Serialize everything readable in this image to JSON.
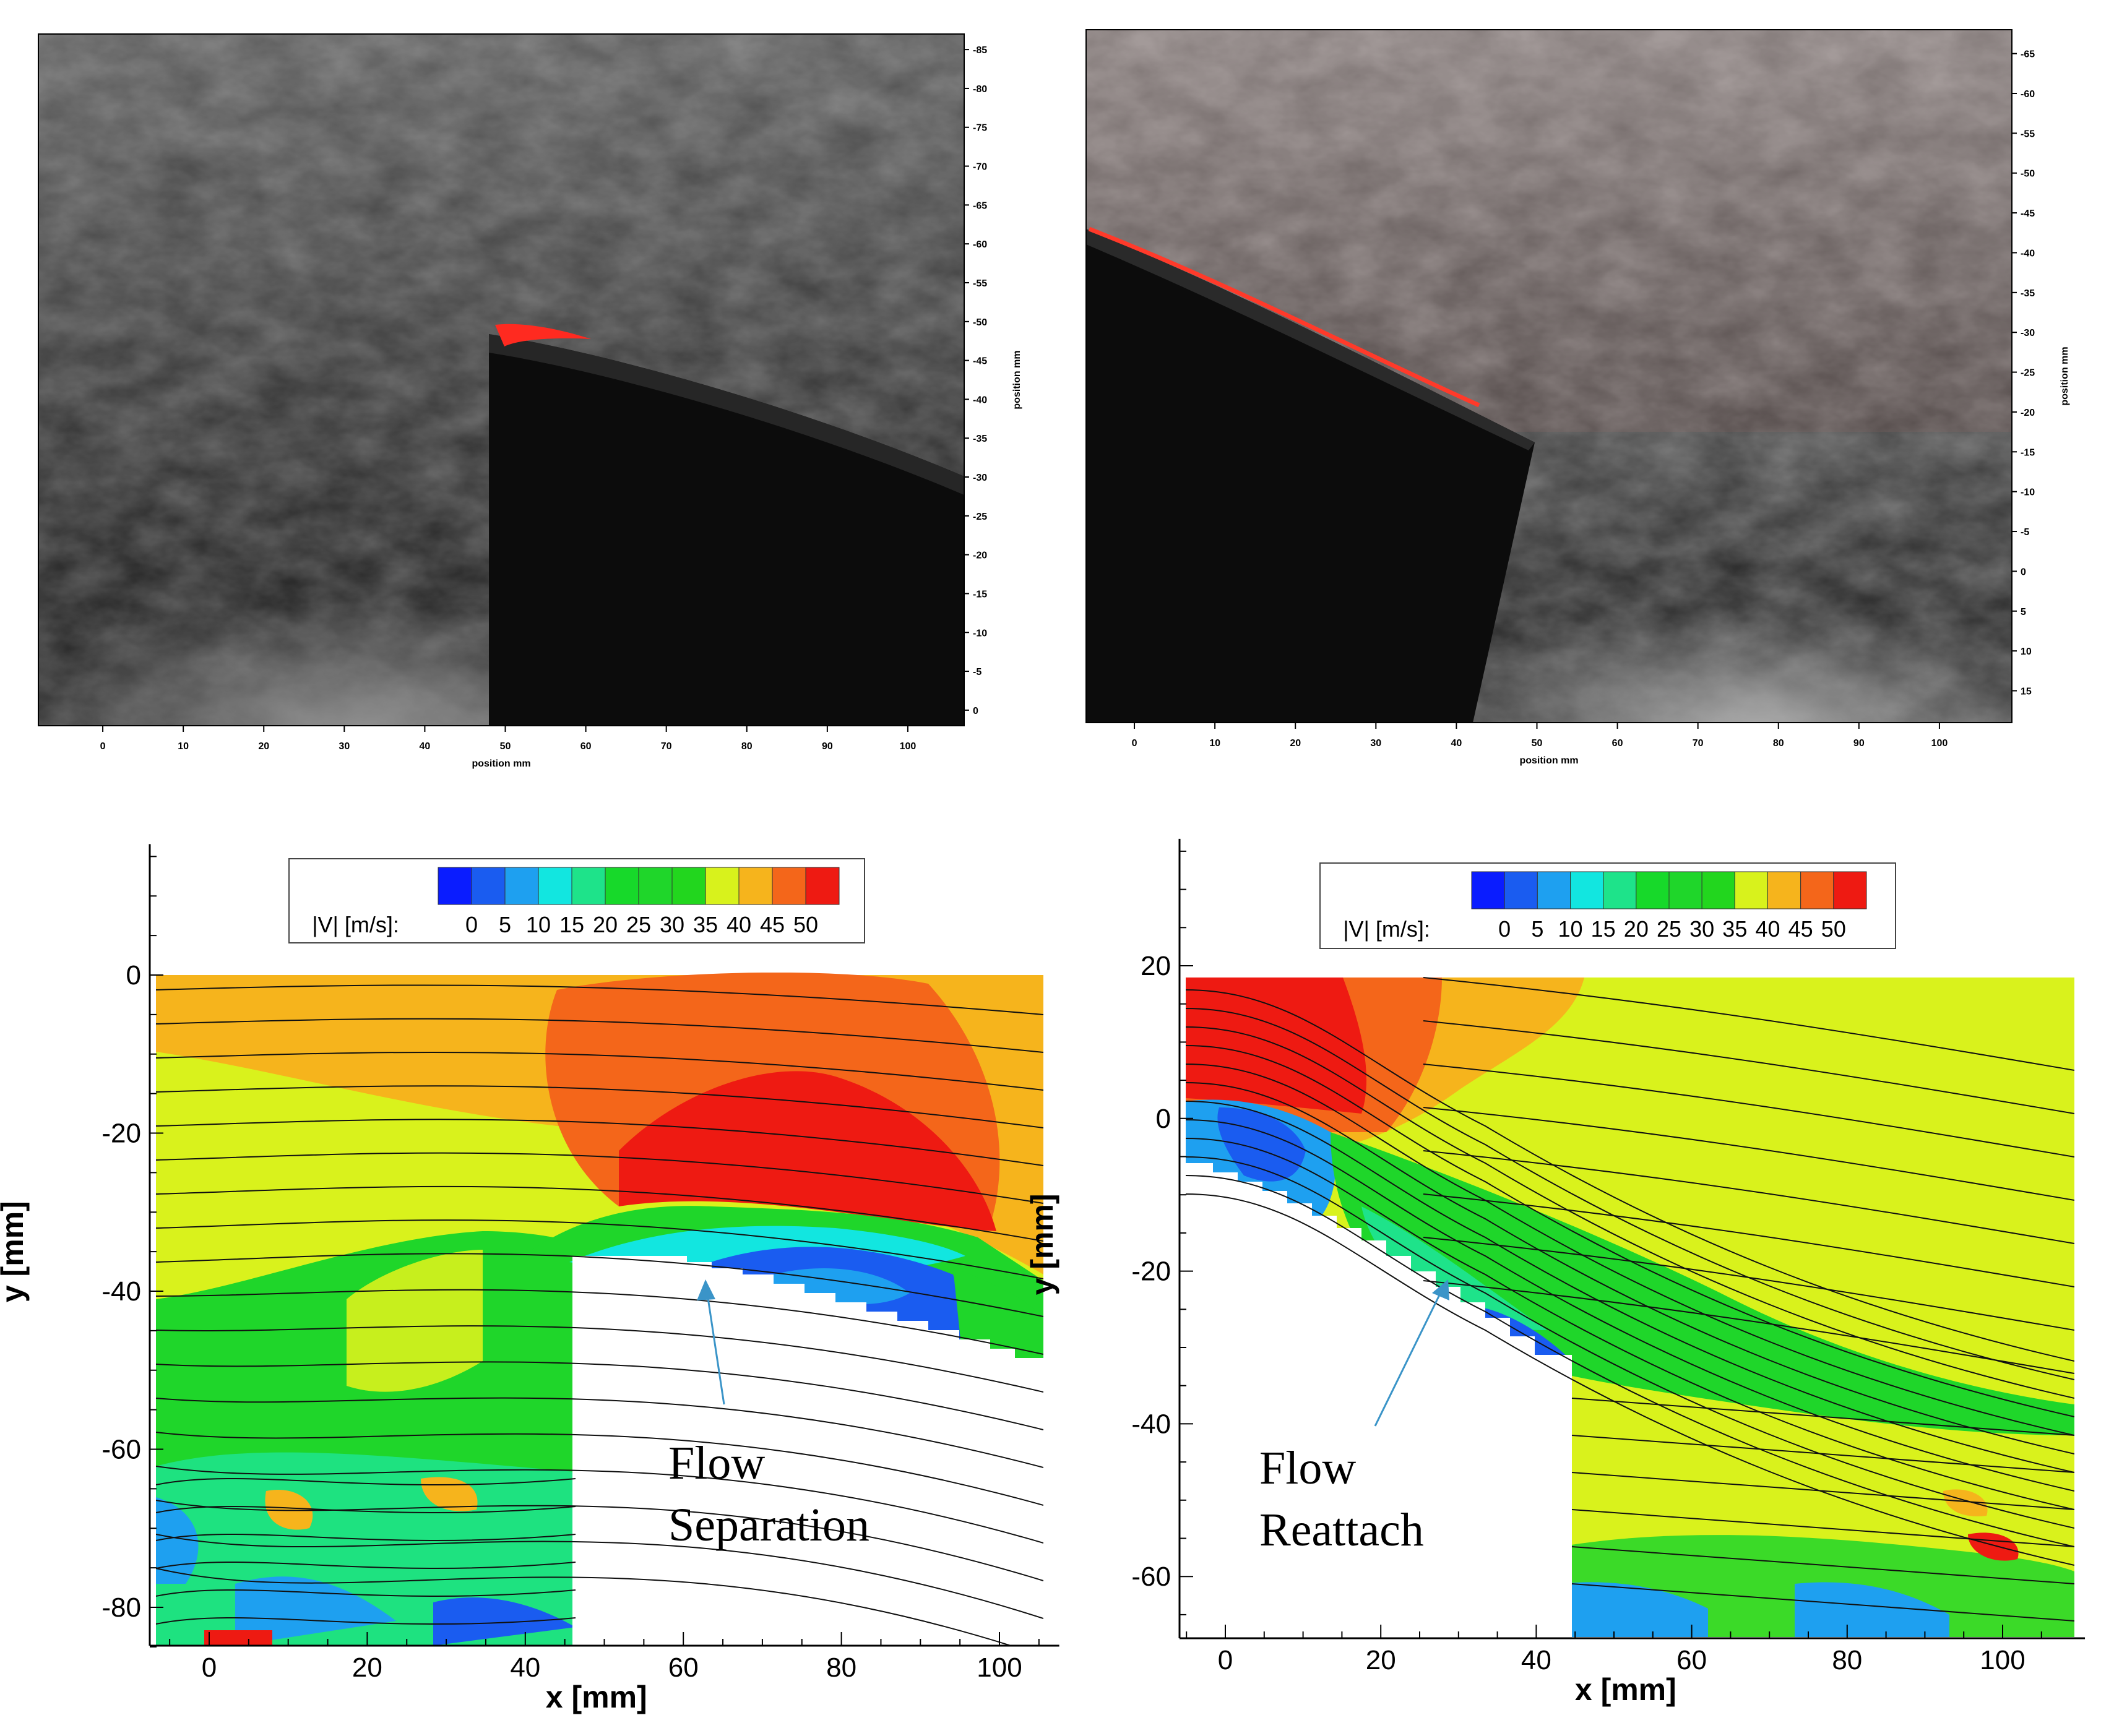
{
  "panels": {
    "top_left": {
      "x_ticks": [
        "0",
        "10",
        "20",
        "30",
        "40",
        "50",
        "60",
        "70",
        "80",
        "90",
        "100"
      ],
      "x_label": "position mm",
      "y_ticks": [
        "0",
        "-5",
        "-10",
        "-15",
        "-20",
        "-25",
        "-30",
        "-35",
        "-40",
        "-45",
        "-50",
        "-55",
        "-60",
        "-65",
        "-70",
        "-75",
        "-80",
        "-85"
      ],
      "y_label": "position mm"
    },
    "top_right": {
      "x_ticks": [
        "0",
        "10",
        "20",
        "30",
        "40",
        "50",
        "60",
        "70",
        "80",
        "90",
        "100"
      ],
      "x_label": "position mm",
      "y_ticks": [
        "15",
        "10",
        "5",
        "0",
        "-5",
        "-10",
        "-15",
        "-20",
        "-25",
        "-30",
        "-35",
        "-40",
        "-45",
        "-50",
        "-55",
        "-60",
        "-65"
      ],
      "y_label": "position mm"
    }
  },
  "colorbar": {
    "label": "|V| [m/s]:",
    "ticks": [
      "0",
      "5",
      "10",
      "15",
      "20",
      "25",
      "30",
      "35",
      "40",
      "45",
      "50"
    ],
    "colors": [
      "#0a1cff",
      "#1a5cf0",
      "#1ea0f0",
      "#12e6e0",
      "#1ee38a",
      "#17d92a",
      "#1fd62a",
      "#22d61e",
      "#d8f21c",
      "#f6b41c",
      "#f4661a",
      "#ee1a12"
    ]
  },
  "chart_data": [
    {
      "type": "heatmap",
      "xlabel": "x [mm]",
      "ylabel": "y [mm]",
      "xlim": [
        -8,
        106
      ],
      "ylim": [
        -85,
        15
      ],
      "x_ticks": [
        0,
        20,
        40,
        60,
        80,
        100
      ],
      "y_ticks": [
        0,
        -20,
        -40,
        -60,
        -80
      ],
      "annotation": [
        "Flow",
        "Separation"
      ],
      "colorbar_label": "|V| [m/s]:",
      "colorbar_ticks": [
        0,
        5,
        10,
        15,
        20,
        25,
        30,
        35,
        40,
        45,
        50
      ]
    },
    {
      "type": "heatmap",
      "xlabel": "x [mm]",
      "ylabel": "y [mm]",
      "xlim": [
        -6,
        109
      ],
      "ylim": [
        -68,
        35
      ],
      "x_ticks": [
        0,
        20,
        40,
        60,
        80,
        100
      ],
      "y_ticks": [
        20,
        0,
        -20,
        -40,
        -60
      ],
      "annotation": [
        "Flow",
        "Reattach"
      ],
      "colorbar_label": "|V| [m/s]:",
      "colorbar_ticks": [
        0,
        5,
        10,
        15,
        20,
        25,
        30,
        35,
        40,
        45,
        50
      ]
    }
  ]
}
